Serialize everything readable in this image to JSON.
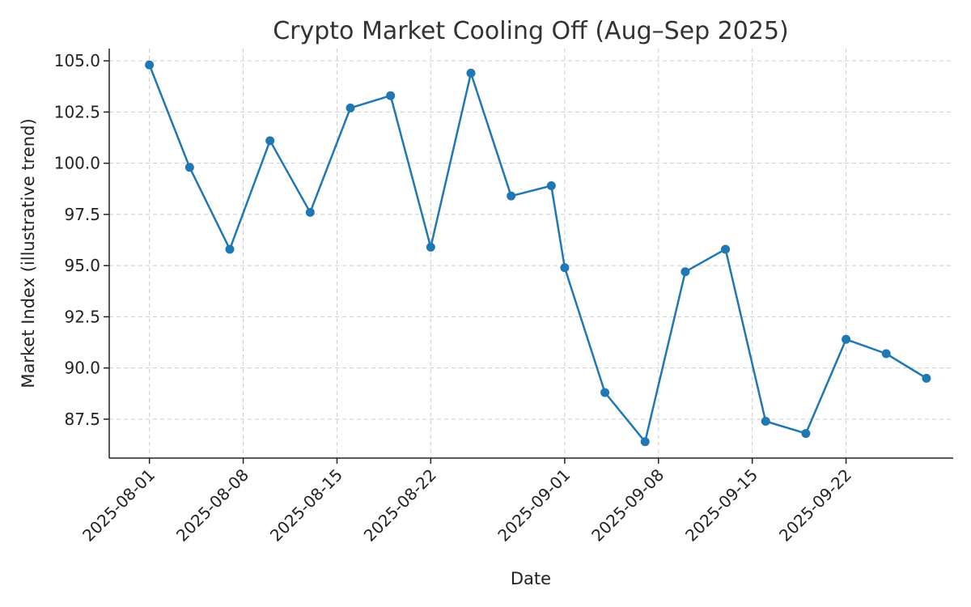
{
  "chart_data": {
    "type": "line",
    "title": "Crypto Market Cooling Off (Aug–Sep 2025)",
    "xlabel": "Date",
    "ylabel": "Market Index (illustrative trend)",
    "x": [
      "2025-08-01",
      "2025-08-04",
      "2025-08-07",
      "2025-08-10",
      "2025-08-13",
      "2025-08-16",
      "2025-08-19",
      "2025-08-22",
      "2025-08-25",
      "2025-08-28",
      "2025-08-31",
      "2025-09-01",
      "2025-09-04",
      "2025-09-07",
      "2025-09-10",
      "2025-09-13",
      "2025-09-16",
      "2025-09-19",
      "2025-09-22",
      "2025-09-25",
      "2025-09-28"
    ],
    "series": [
      {
        "values": [
          104.8,
          99.8,
          95.8,
          101.1,
          97.6,
          102.7,
          103.3,
          95.9,
          104.4,
          98.4,
          98.9,
          94.9,
          88.8,
          86.4,
          94.7,
          95.8,
          87.4,
          86.8,
          91.4,
          90.7,
          89.5
        ],
        "color": "#1f77b4"
      }
    ],
    "x_ticks": [
      "2025-08-01",
      "2025-08-08",
      "2025-08-15",
      "2025-08-22",
      "2025-09-01",
      "2025-09-08",
      "2025-09-15",
      "2025-09-22"
    ],
    "y_ticks": [
      87.5,
      90.0,
      92.5,
      95.0,
      97.5,
      100.0,
      102.5,
      105.0
    ],
    "xlim": [
      "2025-07-29",
      "2025-09-30"
    ],
    "ylim": [
      85.6,
      105.6
    ],
    "grid": true,
    "legend": "none"
  }
}
